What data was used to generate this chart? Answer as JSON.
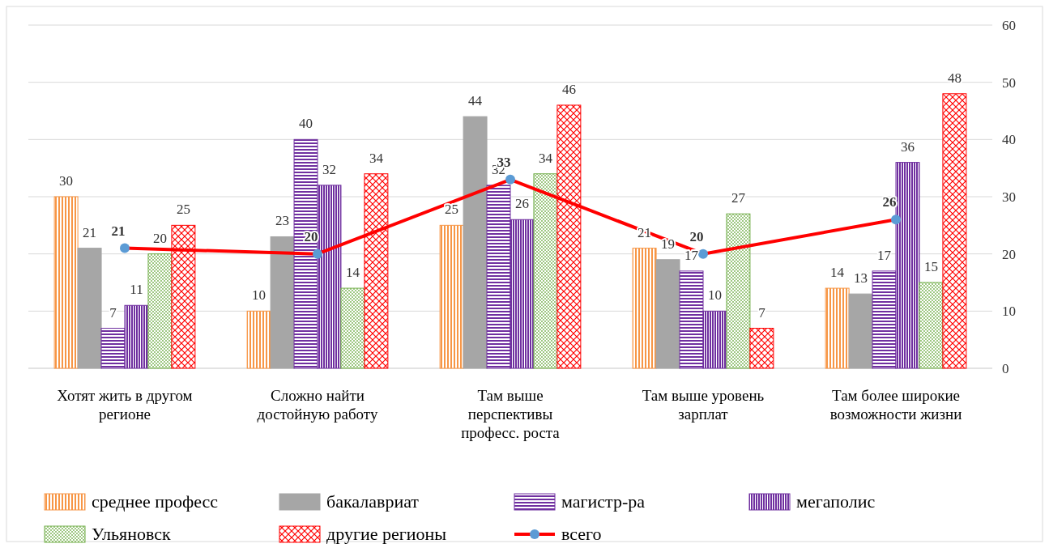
{
  "chart_data": {
    "type": "bar",
    "categories": [
      "Хотят жить в другом регионе",
      "Сложно найти достойную работу",
      "Там выше перспективы професс. роста",
      "Там выше уровень зарплат",
      "Там более широкие возможности жизни"
    ],
    "series": [
      {
        "name": "среднее професс",
        "color": "#f79646",
        "values": [
          30,
          10,
          25,
          21,
          14
        ]
      },
      {
        "name": "бакалавриат",
        "color": "#a6a6a6",
        "values": [
          21,
          23,
          44,
          19,
          13
        ]
      },
      {
        "name": "магистр-ра",
        "color": "#7030a0",
        "values": [
          7,
          40,
          32,
          17,
          17
        ]
      },
      {
        "name": "мегаполис",
        "color": "#7030a0",
        "values": [
          11,
          32,
          26,
          10,
          36
        ]
      },
      {
        "name": "Ульяновск",
        "color": "#70ad47",
        "values": [
          20,
          14,
          34,
          27,
          15
        ]
      },
      {
        "name": "другие регионы",
        "color": "#ff0000",
        "values": [
          25,
          34,
          46,
          7,
          48
        ]
      },
      {
        "name": "всего",
        "type": "line",
        "color": "#ff0000",
        "values": [
          21,
          20,
          33,
          20,
          26
        ]
      }
    ],
    "ylim": [
      0,
      60
    ],
    "yticks": [
      0,
      10,
      20,
      30,
      40,
      50,
      60
    ],
    "grid": "y",
    "legend": "bottom",
    "data_labels": true,
    "marker": "circle",
    "line_style": "solid"
  }
}
